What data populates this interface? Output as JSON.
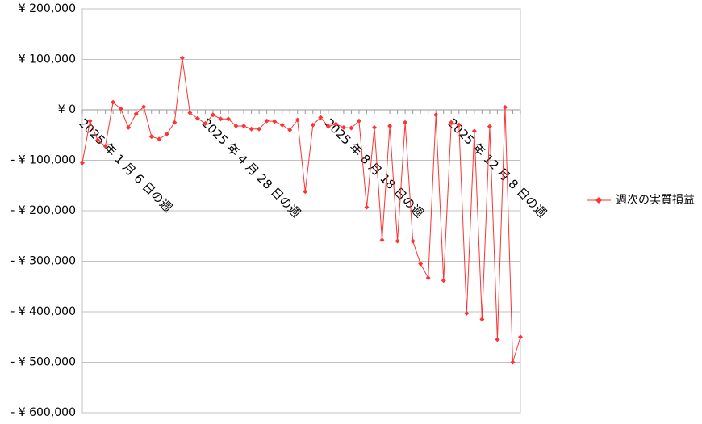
{
  "chart_data": {
    "type": "line",
    "categories": [
      "2025 年 1 月 6 日の週",
      null,
      null,
      null,
      null,
      null,
      null,
      null,
      null,
      null,
      null,
      null,
      null,
      null,
      null,
      null,
      "2025 年 4 月 28 日の週",
      null,
      null,
      null,
      null,
      null,
      null,
      null,
      null,
      null,
      null,
      null,
      null,
      null,
      null,
      null,
      "2025 年 8 月 18 日の週",
      null,
      null,
      null,
      null,
      null,
      null,
      null,
      null,
      null,
      null,
      null,
      null,
      null,
      null,
      null,
      "2025 年 12 月 8 日の週",
      null,
      null,
      null,
      null,
      null,
      null,
      null,
      null,
      null
    ],
    "series": [
      {
        "name": "週次の実質損益",
        "color": "#ff3333",
        "values": [
          -105000,
          -22000,
          -60000,
          -72000,
          15000,
          2000,
          -35000,
          -8000,
          6000,
          -53000,
          -58000,
          -48000,
          -25000,
          103000,
          -6000,
          -17000,
          -27000,
          -10000,
          -18000,
          -18000,
          -32000,
          -32000,
          -38000,
          -38000,
          -22000,
          -23000,
          -30000,
          -40000,
          -20000,
          -162000,
          -30000,
          -15000,
          -33000,
          -28000,
          -35000,
          -36000,
          -22000,
          -193000,
          -35000,
          -258000,
          -32000,
          -260000,
          -25000,
          -260000,
          -305000,
          -333000,
          -10000,
          -338000,
          -25000,
          -30000,
          -403000,
          -42000,
          -415000,
          -33000,
          -455000,
          5000,
          -500000,
          -450000
        ]
      }
    ],
    "ylim": [
      -600000,
      200000
    ],
    "yticks": [
      {
        "value": -600000,
        "label": "- ¥ 600,000"
      },
      {
        "value": -500000,
        "label": "- ¥ 500,000"
      },
      {
        "value": -400000,
        "label": "- ¥ 400,000"
      },
      {
        "value": -300000,
        "label": "- ¥ 300,000"
      },
      {
        "value": -200000,
        "label": "- ¥ 200,000"
      },
      {
        "value": -100000,
        "label": "- ¥ 100,000"
      },
      {
        "value": 0,
        "label": "¥ 0"
      },
      {
        "value": 100000,
        "label": "¥ 100,000"
      },
      {
        "value": 200000,
        "label": "¥ 200,000"
      }
    ],
    "negative_label_color": "#ff0000",
    "grid": true,
    "legend": "right"
  }
}
